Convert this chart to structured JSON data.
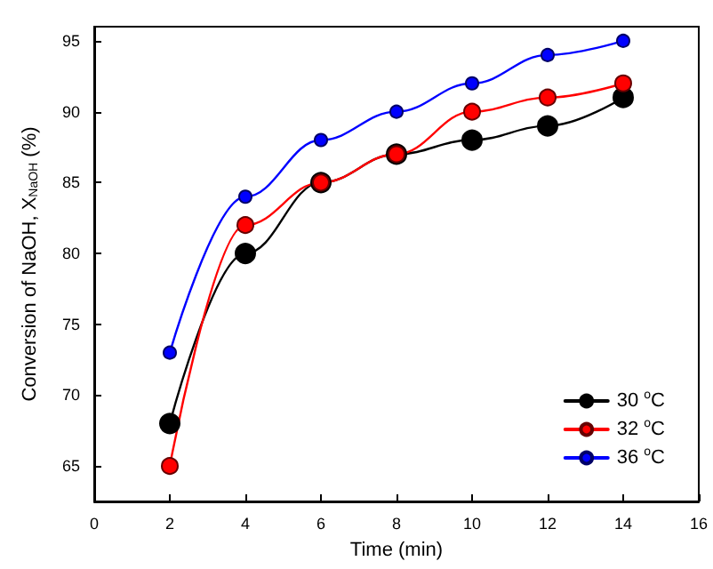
{
  "chart_data": {
    "type": "line",
    "xlabel": "Time (min)",
    "ylabel": "Conversion of NaOH, X$_{NaOH}$ (%)",
    "x": [
      2,
      4,
      6,
      8,
      10,
      12,
      14
    ],
    "series": [
      {
        "name": "30 $^{o}$C",
        "color": "#000000",
        "values": [
          68,
          80,
          85,
          87,
          88,
          89,
          91
        ]
      },
      {
        "name": "32 $^{o}$C",
        "color": "#ff0000",
        "values": [
          65,
          82,
          85,
          87,
          90,
          91,
          92
        ]
      },
      {
        "name": "36 $^{o}$C",
        "color": "#0000ff",
        "values": [
          73,
          84,
          88,
          90,
          92,
          94,
          95
        ]
      }
    ],
    "xlim": [
      0,
      16
    ],
    "xticks": [
      0,
      2,
      4,
      6,
      8,
      10,
      12,
      14,
      16
    ],
    "ylim": [
      62.5,
      96
    ],
    "yticks": [
      65,
      70,
      75,
      80,
      85,
      90,
      95
    ],
    "legend": "bottom right",
    "marker": "circle",
    "line_style": "solid",
    "grid": false
  }
}
